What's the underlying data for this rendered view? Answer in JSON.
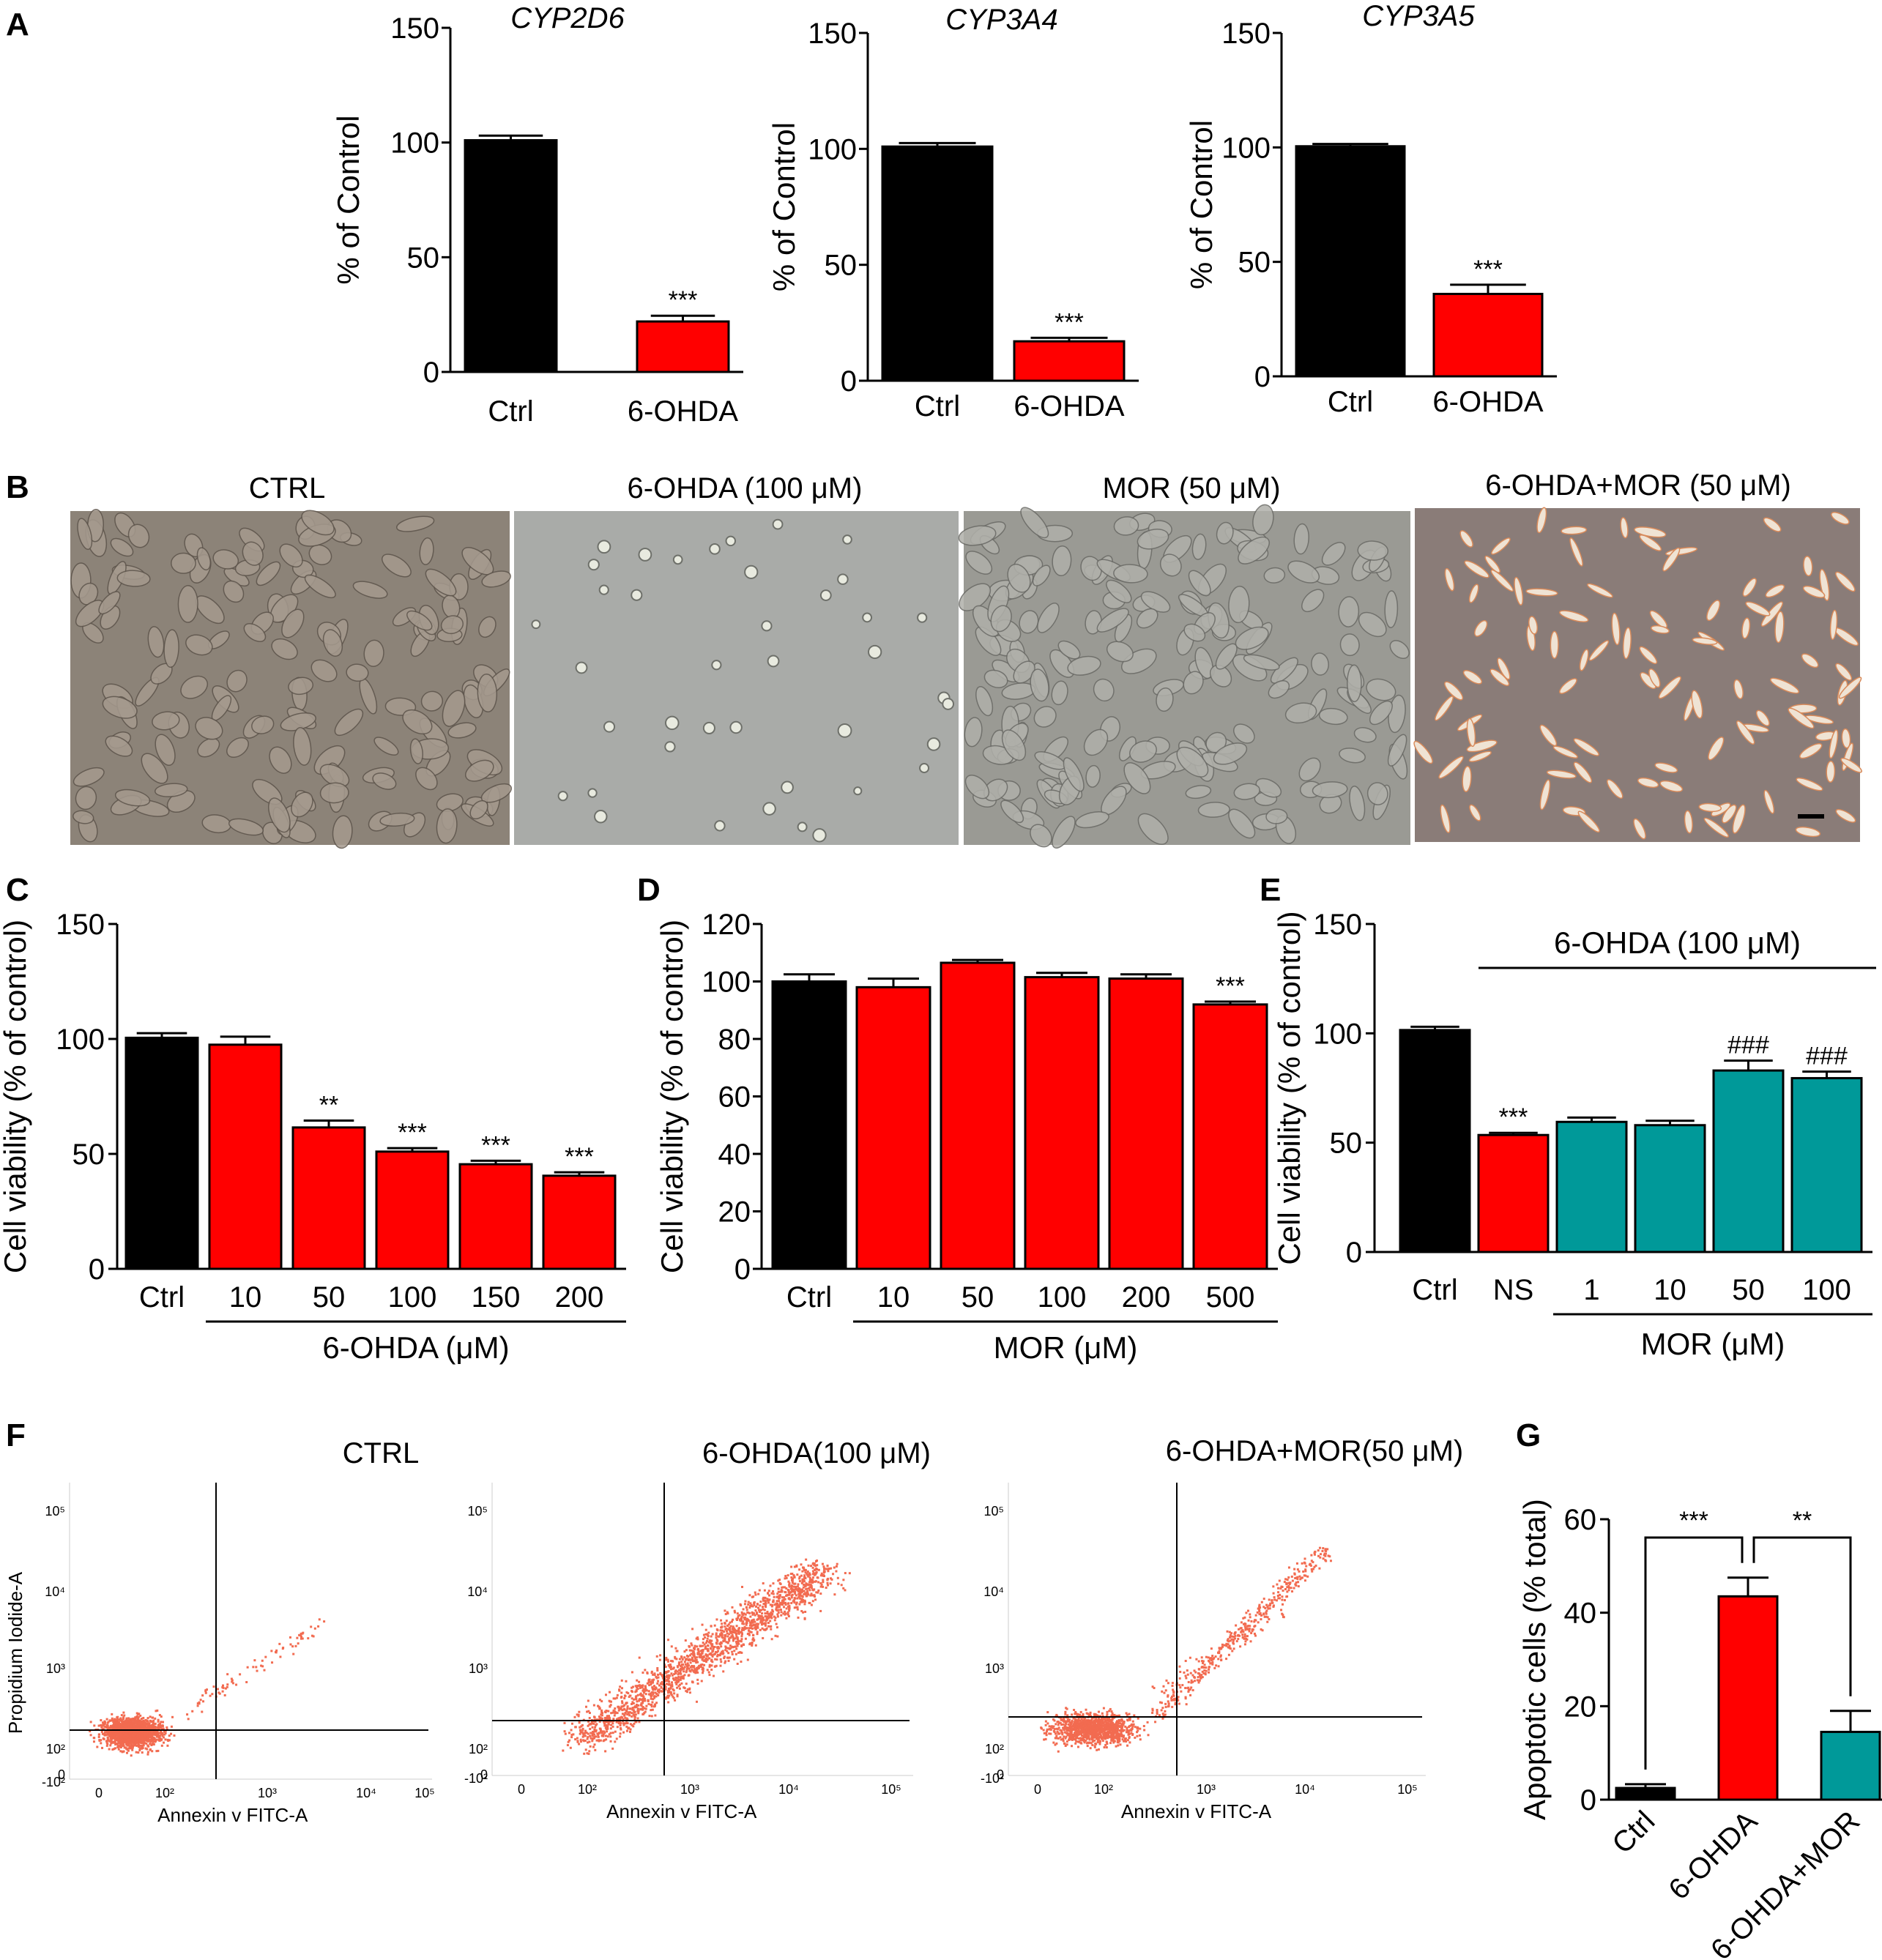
{
  "panels": {
    "A": "A",
    "B": "B",
    "C": "C",
    "D": "D",
    "E": "E",
    "F": "F",
    "G": "G"
  },
  "micrographs": {
    "titles": [
      "CTRL",
      "6-OHDA (100 μM)",
      "MOR (50 μM)",
      "6-OHDA+MOR (50 μM)"
    ],
    "colors": [
      "#8c8378",
      "#a9aba8",
      "#9a9a94",
      "#8a7c78"
    ]
  },
  "flow": {
    "titles": [
      "CTRL",
      "6-OHDA(100 μM)",
      "6-OHDA+MOR(50 μM)"
    ],
    "xlabel": "Annexin v FITC-A",
    "ylabel": "Propidium Iodide-A",
    "xticks": [
      "0",
      "10²",
      "10³",
      "10⁴",
      "10⁵"
    ],
    "yticks": [
      "10⁵",
      "10⁴",
      "10³",
      "10²",
      "0",
      "-10²"
    ],
    "dot_color": "#f26b50"
  },
  "colors": {
    "black": "#000000",
    "red": "#ff0000",
    "teal": "#009999"
  },
  "chart_data": [
    {
      "id": "A1",
      "type": "bar",
      "title": "CYP2D6",
      "ylabel": "% of Control",
      "categories": [
        "Ctrl",
        "6-OHDA"
      ],
      "values": [
        101,
        22
      ],
      "errors": [
        2,
        2.5
      ],
      "colors": [
        "#000000",
        "#ff0000"
      ],
      "ylim": [
        0,
        150
      ],
      "yticks": [
        0,
        50,
        100,
        150
      ],
      "annotations": [
        "",
        "***"
      ]
    },
    {
      "id": "A2",
      "type": "bar",
      "title": "CYP3A4",
      "ylabel": "% of Control",
      "categories": [
        "Ctrl",
        "6-OHDA"
      ],
      "values": [
        101,
        17
      ],
      "errors": [
        1.5,
        1.5
      ],
      "colors": [
        "#000000",
        "#ff0000"
      ],
      "ylim": [
        0,
        150
      ],
      "yticks": [
        0,
        50,
        100,
        150
      ],
      "annotations": [
        "",
        "***"
      ]
    },
    {
      "id": "A3",
      "type": "bar",
      "title": "CYP3A5",
      "ylabel": "% of Control",
      "categories": [
        "Ctrl",
        "6-OHDA"
      ],
      "values": [
        100.5,
        36
      ],
      "errors": [
        1,
        4
      ],
      "colors": [
        "#000000",
        "#ff0000"
      ],
      "ylim": [
        0,
        150
      ],
      "yticks": [
        0,
        50,
        100,
        150
      ],
      "annotations": [
        "",
        "***"
      ]
    },
    {
      "id": "C",
      "type": "bar",
      "ylabel": "Cell viability (% of control)",
      "categories": [
        "Ctrl",
        "10",
        "50",
        "100",
        "150",
        "200"
      ],
      "values": [
        100.5,
        97.5,
        61.5,
        51,
        45.5,
        40.5
      ],
      "errors": [
        2,
        3.5,
        3,
        1.5,
        1.5,
        1.5
      ],
      "colors": [
        "#000000",
        "#ff0000",
        "#ff0000",
        "#ff0000",
        "#ff0000",
        "#ff0000"
      ],
      "ylim": [
        0,
        150
      ],
      "yticks": [
        0,
        50,
        100,
        150
      ],
      "annotations": [
        "",
        "",
        "**",
        "***",
        "***",
        "***"
      ],
      "group_label": "6-OHDA (μM)"
    },
    {
      "id": "D",
      "type": "bar",
      "ylabel": "Cell viability (% of control)",
      "categories": [
        "Ctrl",
        "10",
        "50",
        "100",
        "200",
        "500"
      ],
      "values": [
        100,
        98,
        106.5,
        101.5,
        101,
        92
      ],
      "errors": [
        2.5,
        3,
        1,
        1.5,
        1.5,
        1
      ],
      "colors": [
        "#000000",
        "#ff0000",
        "#ff0000",
        "#ff0000",
        "#ff0000",
        "#ff0000"
      ],
      "ylim": [
        0,
        120
      ],
      "yticks": [
        0,
        20,
        40,
        60,
        80,
        100,
        120
      ],
      "annotations": [
        "",
        "",
        "",
        "",
        "",
        "***"
      ],
      "group_label": "MOR (μM)"
    },
    {
      "id": "E",
      "type": "bar",
      "ylabel": "Cell viability (% of control)",
      "categories": [
        "Ctrl",
        "NS",
        "1",
        "10",
        "50",
        "100"
      ],
      "values": [
        101.5,
        53.5,
        59.5,
        58,
        83,
        79.5
      ],
      "errors": [
        1.5,
        1,
        2,
        2,
        4.5,
        3
      ],
      "colors": [
        "#000000",
        "#ff0000",
        "#009999",
        "#009999",
        "#009999",
        "#009999"
      ],
      "ylim": [
        0,
        150
      ],
      "yticks": [
        0,
        50,
        100,
        150
      ],
      "annotations": [
        "",
        "***",
        "",
        "",
        "###",
        "###"
      ],
      "top_label": "6-OHDA (100 μM)",
      "group_label": "MOR (μM)"
    },
    {
      "id": "G",
      "type": "bar",
      "ylabel": "Apoptotic cells (% total)",
      "categories": [
        "Ctrl",
        "6-OHDA",
        "6-OHDA+MOR"
      ],
      "values": [
        2.5,
        43.5,
        14.5
      ],
      "errors": [
        0.8,
        4,
        4.5
      ],
      "colors": [
        "#000000",
        "#ff0000",
        "#009999"
      ],
      "ylim": [
        0,
        60
      ],
      "yticks": [
        0,
        20,
        40,
        60
      ],
      "brackets": [
        {
          "from": 0,
          "to": 1,
          "label": "***"
        },
        {
          "from": 1,
          "to": 2,
          "label": "**"
        }
      ]
    }
  ]
}
